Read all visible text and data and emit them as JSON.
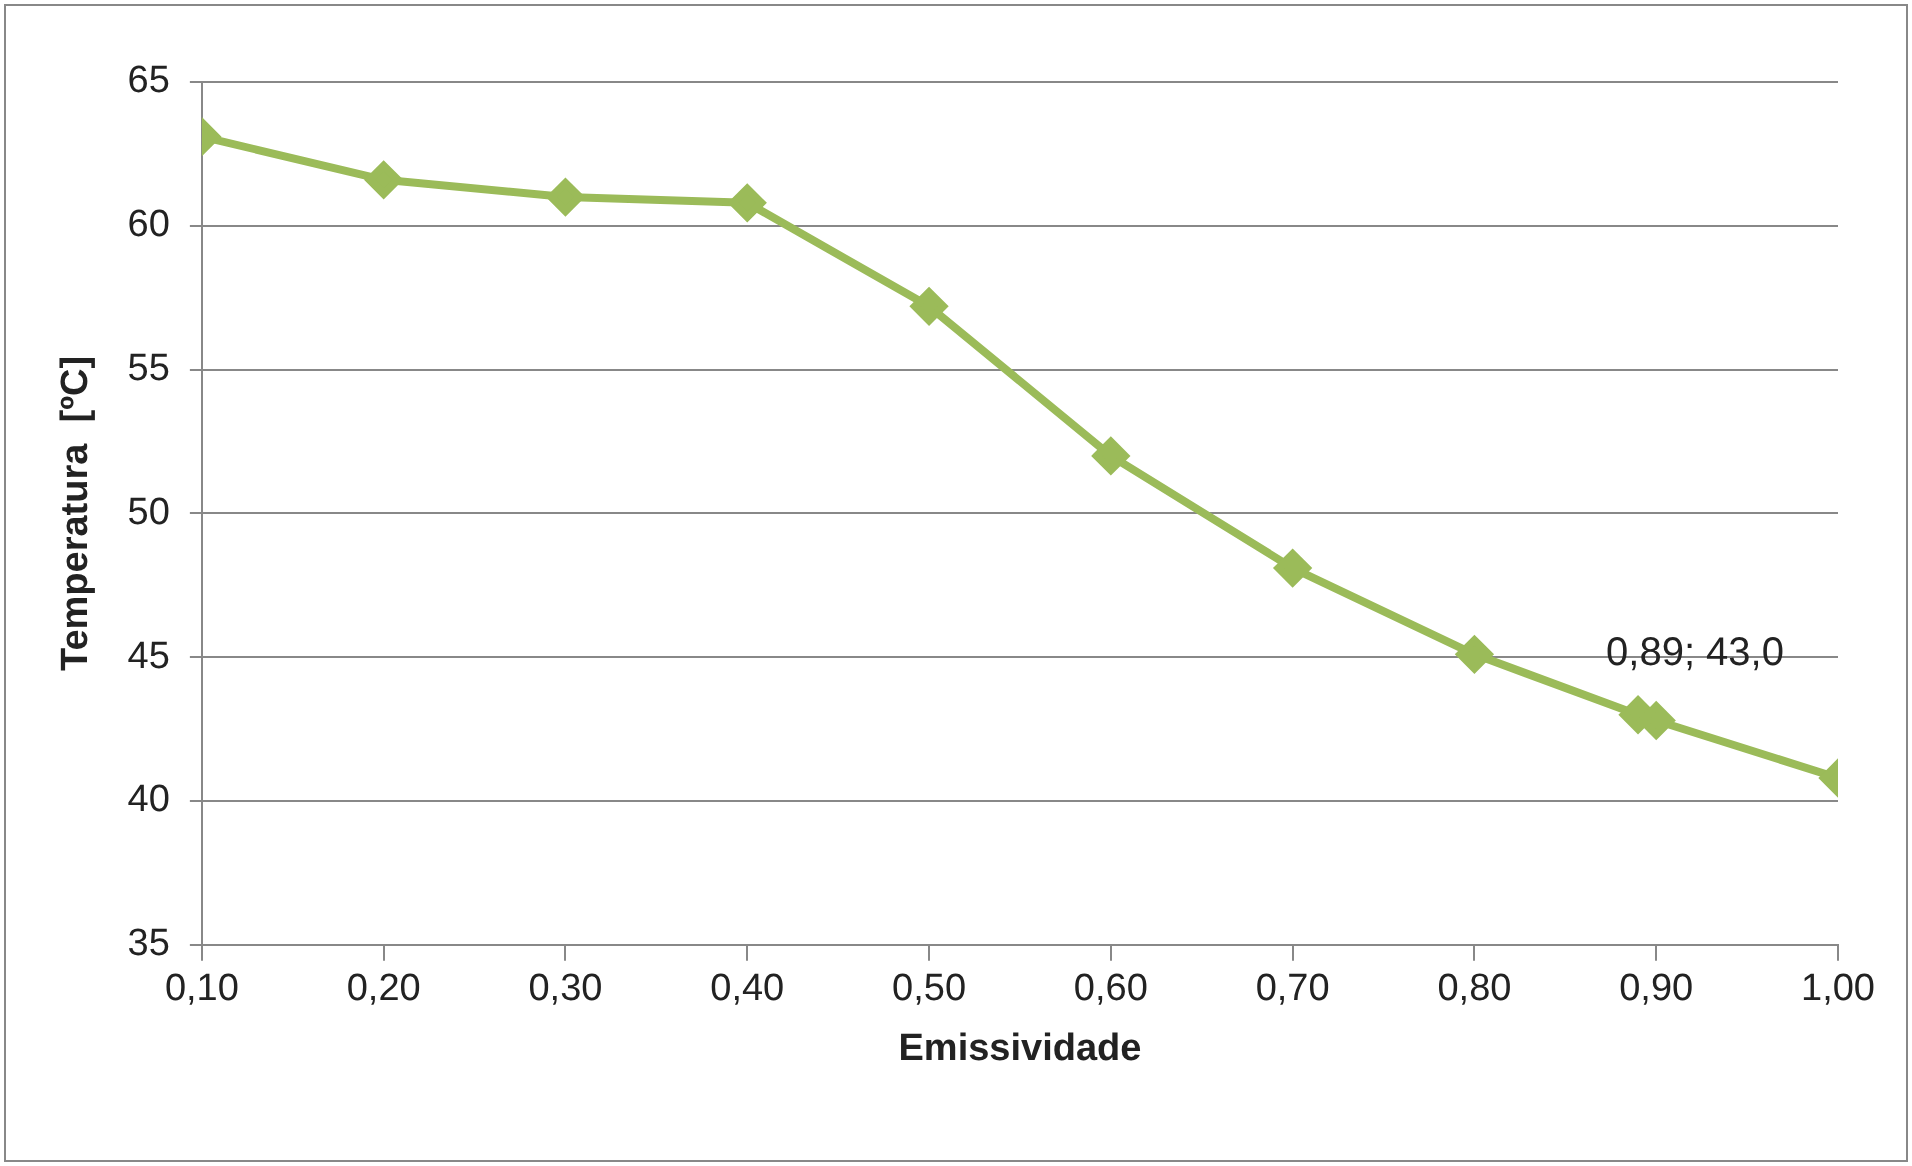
{
  "chart_data": {
    "type": "line",
    "xlabel": "Emissividade",
    "ylabel": "Temperatura  [ºC]",
    "x": [
      0.1,
      0.2,
      0.3,
      0.4,
      0.5,
      0.6,
      0.7,
      0.8,
      0.89,
      0.9,
      1.0
    ],
    "series": [
      {
        "color": "#9bbb59",
        "values": [
          63.1,
          61.6,
          61.0,
          60.8,
          57.2,
          52.0,
          48.1,
          45.1,
          43.0,
          42.8,
          40.8
        ]
      }
    ],
    "xlim": [
      0.1,
      1.0
    ],
    "xticks": [
      {
        "value": 0.1,
        "label": "0,10"
      },
      {
        "value": 0.2,
        "label": "0,20"
      },
      {
        "value": 0.3,
        "label": "0,30"
      },
      {
        "value": 0.4,
        "label": "0,40"
      },
      {
        "value": 0.5,
        "label": "0,50"
      },
      {
        "value": 0.6,
        "label": "0,60"
      },
      {
        "value": 0.7,
        "label": "0,70"
      },
      {
        "value": 0.8,
        "label": "0,80"
      },
      {
        "value": 0.9,
        "label": "0,90"
      },
      {
        "value": 1.0,
        "label": "1,00"
      }
    ],
    "ylim": [
      35,
      65
    ],
    "yticks": [
      35,
      40,
      45,
      50,
      55,
      60,
      65
    ],
    "annotations": [
      {
        "text": "0,89; 43,0",
        "x": 0.89,
        "y": 43.0
      }
    ],
    "grid": "y",
    "legend": false,
    "marker": "diamond",
    "line_style": "solid"
  }
}
